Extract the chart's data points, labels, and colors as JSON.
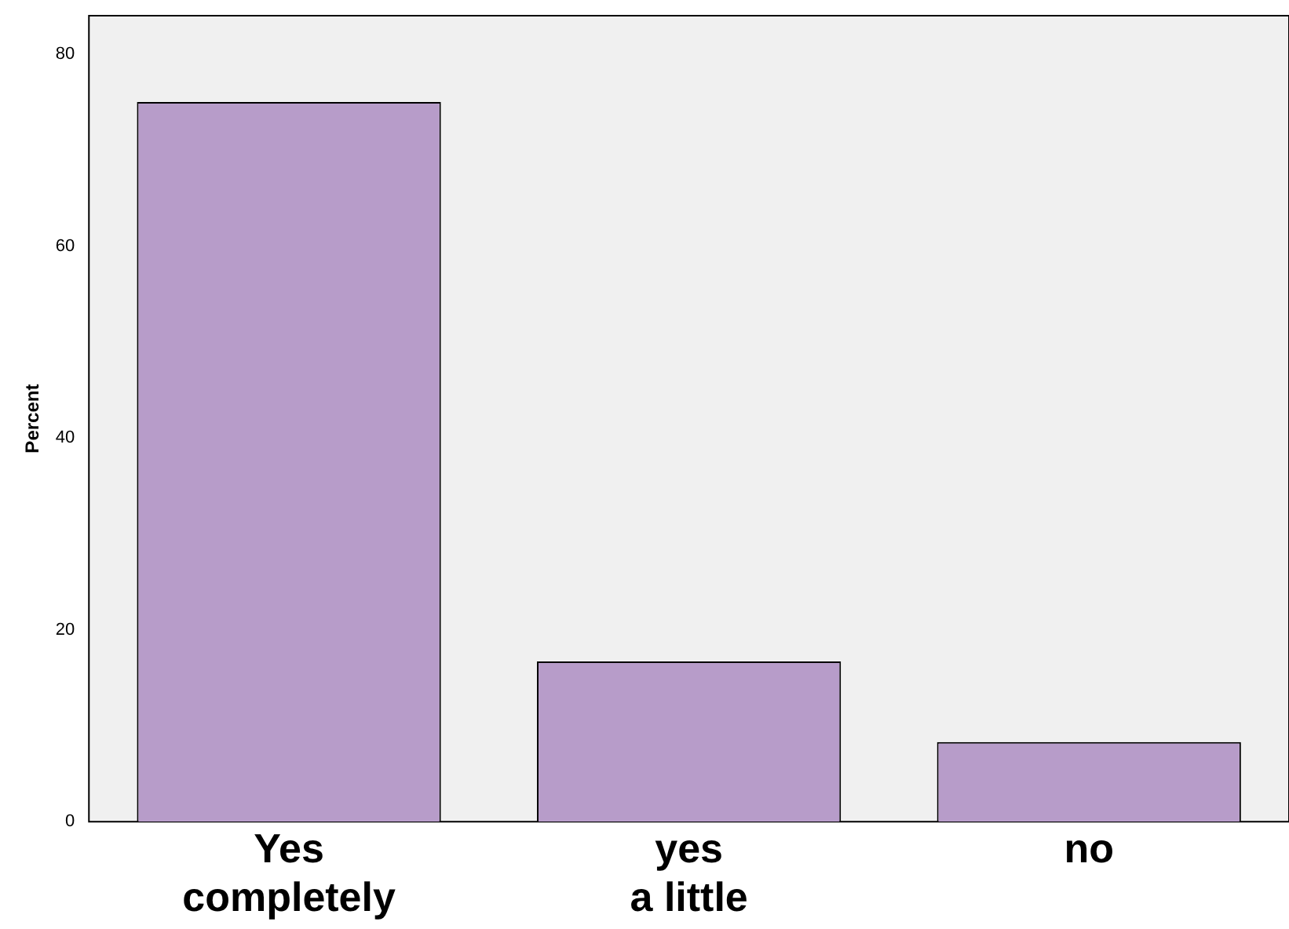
{
  "chart_data": {
    "type": "bar",
    "ylabel": "Percent",
    "categories": [
      "Yes completely",
      "yes a little",
      "no"
    ],
    "values": [
      75,
      16.7,
      8.3
    ],
    "color": "#b79cc9",
    "ylim": [
      0,
      84
    ],
    "yticks": [
      0,
      20,
      40,
      60,
      80
    ],
    "grid": false,
    "legend": false
  }
}
